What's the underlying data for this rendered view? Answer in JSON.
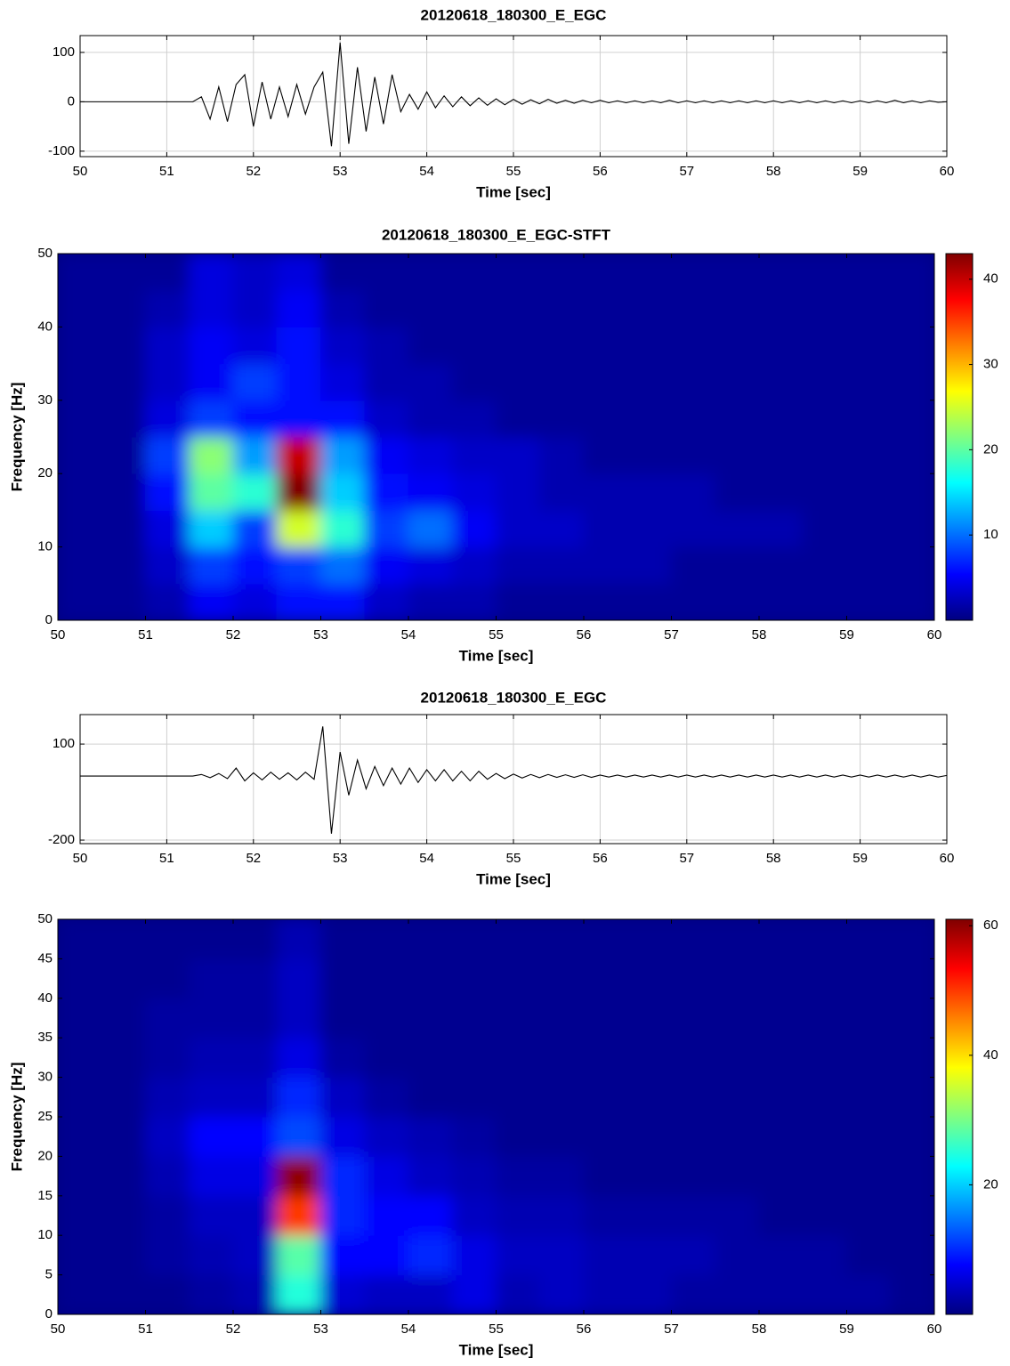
{
  "chart_data": [
    {
      "type": "line",
      "title": "20120618_180300_E_EGC",
      "xlabel": "Time [sec]",
      "color": "#000000",
      "grid": true,
      "xlim": [
        50,
        60
      ],
      "xticks": [
        50,
        51,
        52,
        53,
        54,
        55,
        56,
        57,
        58,
        59,
        60
      ],
      "ylim": [
        -111,
        134
      ],
      "yticks": [
        -100,
        0,
        100
      ],
      "x": [
        50,
        50.1,
        50.2,
        50.3,
        50.4,
        50.5,
        50.6,
        50.7,
        50.8,
        50.9,
        51,
        51.1,
        51.2,
        51.3,
        51.4,
        51.5,
        51.6,
        51.7,
        51.8,
        51.9,
        52,
        52.1,
        52.2,
        52.3,
        52.4,
        52.5,
        52.6,
        52.7,
        52.8,
        52.9,
        53,
        53.1,
        53.2,
        53.3,
        53.4,
        53.5,
        53.6,
        53.7,
        53.8,
        53.9,
        54,
        54.1,
        54.2,
        54.3,
        54.4,
        54.5,
        54.6,
        54.7,
        54.8,
        54.9,
        55,
        55.1,
        55.2,
        55.3,
        55.4,
        55.5,
        55.6,
        55.7,
        55.8,
        55.9,
        56,
        56.1,
        56.2,
        56.3,
        56.4,
        56.5,
        56.6,
        56.7,
        56.8,
        56.9,
        57,
        57.1,
        57.2,
        57.3,
        57.4,
        57.5,
        57.6,
        57.7,
        57.8,
        57.9,
        58,
        58.1,
        58.2,
        58.3,
        58.4,
        58.5,
        58.6,
        58.7,
        58.8,
        58.9,
        59,
        59.1,
        59.2,
        59.3,
        59.4,
        59.5,
        59.6,
        59.7,
        59.8,
        59.9,
        60
      ],
      "values": [
        0,
        0,
        0,
        0,
        0,
        0,
        0,
        0,
        0,
        0,
        0,
        0,
        0,
        0,
        10,
        -35,
        30,
        -40,
        35,
        55,
        -50,
        40,
        -35,
        30,
        -30,
        35,
        -25,
        30,
        60,
        -90,
        120,
        -85,
        70,
        -60,
        50,
        -45,
        55,
        -20,
        15,
        -15,
        20,
        -12,
        12,
        -10,
        10,
        -8,
        8,
        -7,
        6,
        -6,
        5,
        -5,
        4,
        -4,
        5,
        -3,
        3,
        -3,
        3,
        -2,
        3,
        -2,
        2,
        -2,
        2,
        -2,
        2,
        -2,
        3,
        -2,
        2,
        -2,
        2,
        -2,
        2,
        -2,
        2,
        -2,
        2,
        -2,
        2,
        -2,
        2,
        -2,
        2,
        -2,
        2,
        -2,
        2,
        -2,
        2,
        -2,
        2,
        -2,
        3,
        -2,
        2,
        -2,
        2,
        -1,
        0
      ]
    },
    {
      "type": "heatmap",
      "title": "20120618_180300_E_EGC-STFT",
      "xlabel": "Time [sec]",
      "ylabel": "Frequency [Hz]",
      "colormap": "jet",
      "xlim": [
        50,
        60
      ],
      "xticks": [
        50,
        51,
        52,
        53,
        54,
        55,
        56,
        57,
        58,
        59,
        60
      ],
      "ylim": [
        0,
        50
      ],
      "yticks": [
        0,
        10,
        20,
        30,
        40,
        50
      ],
      "clim": [
        0,
        43
      ],
      "cticks": [
        10,
        20,
        30,
        40
      ],
      "x": [
        50.25,
        50.75,
        51.25,
        51.75,
        52.25,
        52.75,
        53.25,
        53.75,
        54.25,
        54.75,
        55.25,
        55.75,
        56.25,
        56.75,
        57.25,
        57.75,
        58.25,
        58.75,
        59.25,
        59.75
      ],
      "y": [
        2.5,
        7.5,
        12.5,
        17.5,
        22.5,
        27.5,
        32.5,
        37.5,
        42.5,
        47.5
      ],
      "z": [
        [
          1,
          1,
          2,
          5,
          4,
          6,
          6,
          3,
          2,
          2,
          1,
          1,
          1,
          1,
          1,
          1,
          1,
          1,
          1,
          1
        ],
        [
          1,
          1,
          3,
          8,
          6,
          8,
          10,
          5,
          4,
          3,
          2,
          2,
          2,
          2,
          1,
          1,
          1,
          1,
          1,
          1
        ],
        [
          1,
          1,
          4,
          14,
          8,
          25,
          18,
          8,
          10,
          5,
          3,
          3,
          2,
          2,
          2,
          2,
          2,
          1,
          1,
          1
        ],
        [
          1,
          1,
          6,
          20,
          18,
          43,
          14,
          6,
          5,
          4,
          3,
          2,
          2,
          2,
          2,
          1,
          1,
          1,
          1,
          1
        ],
        [
          1,
          1,
          8,
          22,
          12,
          40,
          12,
          5,
          4,
          3,
          3,
          2,
          1,
          1,
          1,
          1,
          1,
          1,
          1,
          1
        ],
        [
          1,
          1,
          4,
          8,
          6,
          6,
          6,
          3,
          2,
          2,
          1,
          1,
          1,
          1,
          1,
          1,
          1,
          1,
          1,
          1
        ],
        [
          1,
          1,
          3,
          5,
          8,
          6,
          4,
          2,
          2,
          1,
          1,
          1,
          1,
          1,
          1,
          1,
          1,
          1,
          1,
          1
        ],
        [
          1,
          1,
          3,
          5,
          4,
          6,
          3,
          2,
          1,
          1,
          1,
          1,
          1,
          1,
          1,
          1,
          1,
          1,
          1,
          1
        ],
        [
          1,
          1,
          2,
          4,
          3,
          5,
          2,
          1,
          1,
          1,
          1,
          1,
          1,
          1,
          1,
          1,
          1,
          1,
          1,
          1
        ],
        [
          1,
          1,
          1,
          4,
          3,
          4,
          1,
          1,
          1,
          1,
          1,
          1,
          1,
          1,
          1,
          1,
          1,
          1,
          1,
          1
        ]
      ]
    },
    {
      "type": "line",
      "title": "20120618_180300_E_EGC",
      "xlabel": "Time [sec]",
      "color": "#000000",
      "grid": true,
      "xlim": [
        50,
        60
      ],
      "xticks": [
        50,
        51,
        52,
        53,
        54,
        55,
        56,
        57,
        58,
        59,
        60
      ],
      "ylim": [
        -211,
        192
      ],
      "yticks": [
        -200,
        100
      ],
      "x": [
        50,
        50.1,
        50.2,
        50.3,
        50.4,
        50.5,
        50.6,
        50.7,
        50.8,
        50.9,
        51,
        51.1,
        51.2,
        51.3,
        51.4,
        51.5,
        51.6,
        51.7,
        51.8,
        51.9,
        52,
        52.1,
        52.2,
        52.3,
        52.4,
        52.5,
        52.6,
        52.7,
        52.8,
        52.9,
        53,
        53.1,
        53.2,
        53.3,
        53.4,
        53.5,
        53.6,
        53.7,
        53.8,
        53.9,
        54,
        54.1,
        54.2,
        54.3,
        54.4,
        54.5,
        54.6,
        54.7,
        54.8,
        54.9,
        55,
        55.1,
        55.2,
        55.3,
        55.4,
        55.5,
        55.6,
        55.7,
        55.8,
        55.9,
        56,
        56.1,
        56.2,
        56.3,
        56.4,
        56.5,
        56.6,
        56.7,
        56.8,
        56.9,
        57,
        57.1,
        57.2,
        57.3,
        57.4,
        57.5,
        57.6,
        57.7,
        57.8,
        57.9,
        58,
        58.1,
        58.2,
        58.3,
        58.4,
        58.5,
        58.6,
        58.7,
        58.8,
        58.9,
        59,
        59.1,
        59.2,
        59.3,
        59.4,
        59.5,
        59.6,
        59.7,
        59.8,
        59.9,
        60
      ],
      "values": [
        0,
        0,
        0,
        0,
        0,
        0,
        0,
        0,
        0,
        0,
        0,
        0,
        0,
        0,
        5,
        -5,
        8,
        -8,
        25,
        -15,
        10,
        -12,
        12,
        -10,
        10,
        -12,
        12,
        -10,
        155,
        -180,
        75,
        -60,
        50,
        -40,
        30,
        -30,
        25,
        -25,
        25,
        -20,
        20,
        -15,
        20,
        -15,
        15,
        -15,
        15,
        -10,
        8,
        -8,
        6,
        -6,
        5,
        -5,
        5,
        -4,
        4,
        -4,
        4,
        -4,
        3,
        -3,
        3,
        -3,
        3,
        -3,
        3,
        -3,
        3,
        -3,
        3,
        -3,
        3,
        -3,
        3,
        -3,
        3,
        -3,
        3,
        -3,
        3,
        -3,
        3,
        -3,
        3,
        -3,
        3,
        -3,
        3,
        -3,
        3,
        -3,
        3,
        -3,
        3,
        -3,
        3,
        -3,
        3,
        -3,
        2
      ]
    },
    {
      "type": "heatmap",
      "xlabel": "Time [sec]",
      "ylabel": "Frequency [Hz]",
      "colormap": "jet",
      "xlim": [
        50,
        60
      ],
      "xticks": [
        50,
        51,
        52,
        53,
        54,
        55,
        56,
        57,
        58,
        59,
        60
      ],
      "ylim": [
        0,
        50
      ],
      "yticks": [
        0,
        5,
        10,
        15,
        20,
        25,
        30,
        35,
        40,
        45,
        50
      ],
      "clim": [
        0,
        61
      ],
      "cticks": [
        20,
        40,
        60
      ],
      "x": [
        50.25,
        50.75,
        51.25,
        51.75,
        52.25,
        52.75,
        53.25,
        53.75,
        54.25,
        54.75,
        55.25,
        55.75,
        56.25,
        56.75,
        57.25,
        57.75,
        58.25,
        58.75,
        59.25,
        59.75
      ],
      "y": [
        2.5,
        7.5,
        12.5,
        17.5,
        22.5,
        27.5,
        32.5,
        37.5,
        42.5,
        47.5
      ],
      "z": [
        [
          1,
          1,
          1,
          2,
          3,
          25,
          5,
          4,
          4,
          6,
          3,
          4,
          3,
          3,
          2,
          2,
          2,
          2,
          2,
          1
        ],
        [
          1,
          1,
          2,
          3,
          4,
          28,
          8,
          8,
          10,
          6,
          4,
          4,
          3,
          3,
          3,
          2,
          2,
          2,
          1,
          1
        ],
        [
          1,
          1,
          2,
          4,
          4,
          50,
          10,
          8,
          8,
          4,
          3,
          3,
          2,
          2,
          2,
          2,
          1,
          1,
          1,
          1
        ],
        [
          1,
          1,
          3,
          6,
          6,
          60,
          10,
          6,
          4,
          3,
          2,
          2,
          1,
          1,
          1,
          1,
          1,
          1,
          1,
          1
        ],
        [
          1,
          1,
          4,
          8,
          8,
          12,
          6,
          4,
          3,
          2,
          1,
          1,
          1,
          1,
          1,
          1,
          1,
          1,
          1,
          1
        ],
        [
          1,
          1,
          3,
          4,
          4,
          10,
          4,
          2,
          1,
          1,
          1,
          1,
          1,
          1,
          1,
          1,
          1,
          1,
          1,
          1
        ],
        [
          1,
          1,
          2,
          3,
          3,
          6,
          2,
          1,
          1,
          1,
          1,
          1,
          1,
          1,
          1,
          1,
          1,
          1,
          1,
          1
        ],
        [
          1,
          1,
          2,
          2,
          2,
          4,
          1,
          1,
          1,
          1,
          1,
          1,
          1,
          1,
          1,
          1,
          1,
          1,
          1,
          1
        ],
        [
          1,
          1,
          1,
          2,
          2,
          4,
          1,
          1,
          1,
          1,
          1,
          1,
          1,
          1,
          1,
          1,
          1,
          1,
          1,
          1
        ],
        [
          1,
          1,
          1,
          1,
          1,
          3,
          1,
          1,
          1,
          1,
          1,
          1,
          1,
          1,
          1,
          1,
          1,
          1,
          1,
          1
        ]
      ]
    }
  ]
}
